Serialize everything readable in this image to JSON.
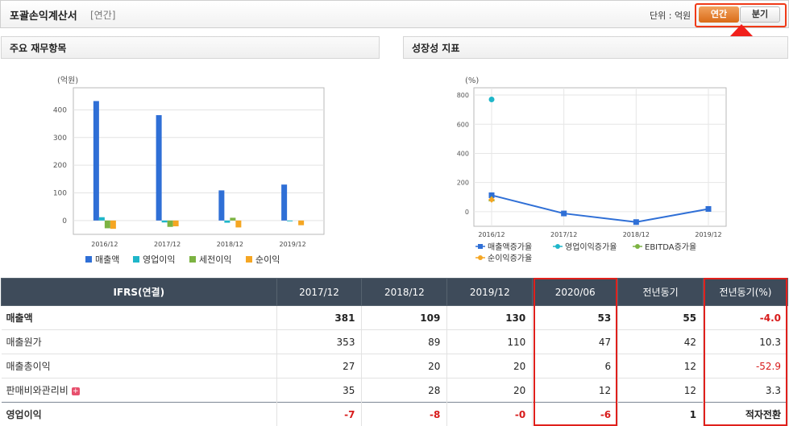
{
  "header": {
    "title": "포괄손익계산서",
    "subtitle": "[연간]",
    "unit_label": "단위 : 억원",
    "btn_annual": "연간",
    "btn_quarter": "분기"
  },
  "left_panel": {
    "title": "주요 재무항목",
    "chart_data": {
      "type": "bar",
      "ylabel": "(억원)",
      "categories": [
        "2016/12",
        "2017/12",
        "2018/12",
        "2019/12"
      ],
      "yticks": [
        "0",
        "100",
        "200",
        "300",
        "400"
      ],
      "ylim": [
        -50,
        480
      ],
      "series": [
        {
          "name": "매출액",
          "color": "#2f6fd6",
          "values": [
            432,
            381,
            109,
            130
          ]
        },
        {
          "name": "영업이익",
          "color": "#1fb6c9",
          "values": [
            12,
            -7,
            -8,
            0
          ]
        },
        {
          "name": "세전이익",
          "color": "#7cb342",
          "values": [
            -28,
            -23,
            10,
            null
          ]
        },
        {
          "name": "순이익",
          "color": "#f5a623",
          "values": [
            -30,
            -21,
            -25,
            -17
          ]
        }
      ],
      "grid": "horizontal"
    }
  },
  "right_panel": {
    "title": "성장성 지표",
    "chart_data": {
      "type": "line",
      "ylabel": "(%)",
      "categories": [
        "2016/12",
        "2017/12",
        "2018/12",
        "2019/12"
      ],
      "yticks": [
        "0",
        "200",
        "400",
        "600",
        "800"
      ],
      "ylim": [
        -100,
        850
      ],
      "series": [
        {
          "name": "매출액증가율",
          "color": "#2f6fd6",
          "values": [
            113,
            -12,
            -71,
            19
          ]
        },
        {
          "name": "영업이익증가율",
          "color": "#1fb6c9",
          "values": [
            770,
            null,
            null,
            null
          ]
        },
        {
          "name": "EBITDA증가율",
          "color": "#7cb342",
          "values": [
            88,
            null,
            null,
            null
          ]
        },
        {
          "name": "순이익증가율",
          "color": "#f5a623",
          "values": [
            83,
            null,
            null,
            null
          ]
        }
      ],
      "grid": "both"
    }
  },
  "table": {
    "headers": [
      "IFRS(연결)",
      "2017/12",
      "2018/12",
      "2019/12",
      "2020/06",
      "전년동기",
      "전년동기(%)"
    ],
    "rows": [
      [
        "매출액",
        "381",
        "109",
        "130",
        "53",
        "55",
        "-4.0"
      ],
      [
        "매출원가",
        "353",
        "89",
        "110",
        "47",
        "42",
        "10.3"
      ],
      [
        "매출총이익",
        "27",
        "20",
        "20",
        "6",
        "12",
        "-52.9"
      ],
      [
        "판매비와관리비",
        "35",
        "28",
        "20",
        "12",
        "12",
        "3.3"
      ],
      [
        "영업이익",
        "-7",
        "-8",
        "-0",
        "-6",
        "1",
        "적자전환"
      ]
    ],
    "expand_icon": "+"
  }
}
